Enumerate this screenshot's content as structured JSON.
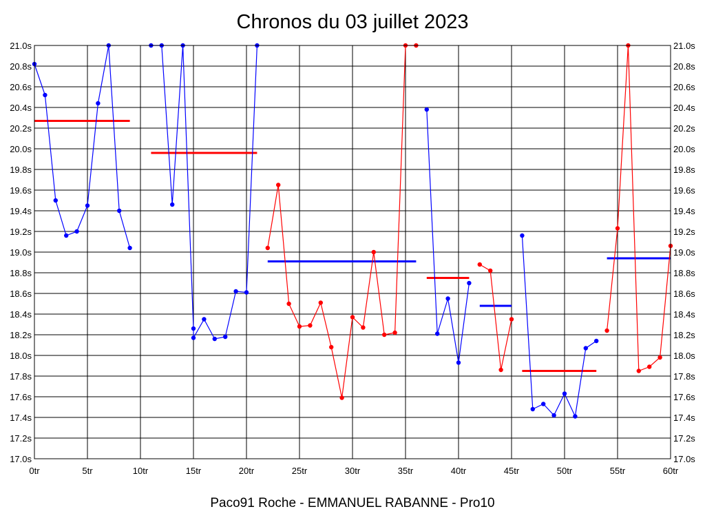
{
  "chart_data": {
    "type": "line",
    "title": "Chronos du 03 juillet 2023",
    "xlabel": "Paco91 Roche - EMMANUEL RABANNE - Pro10",
    "ylabel": "",
    "xlim": [
      0,
      60
    ],
    "ylim": [
      17.0,
      21.0
    ],
    "grid": true,
    "x_ticks": [
      "0tr",
      "5tr",
      "10tr",
      "15tr",
      "20tr",
      "25tr",
      "30tr",
      "35tr",
      "40tr",
      "45tr",
      "50tr",
      "55tr",
      "60tr"
    ],
    "y_ticks": [
      "17.0s",
      "17.2s",
      "17.4s",
      "17.6s",
      "17.8s",
      "18.0s",
      "18.2s",
      "18.4s",
      "18.6s",
      "18.8s",
      "19.0s",
      "19.2s",
      "19.4s",
      "19.6s",
      "19.8s",
      "20.0s",
      "20.2s",
      "20.4s",
      "20.6s",
      "20.8s",
      "21.0s"
    ],
    "colors": {
      "blue": "#0000ff",
      "red": "#ff0000",
      "grid": "#000000"
    },
    "series": [
      {
        "color": "#0000ff",
        "points": [
          [
            0,
            20.82
          ],
          [
            1,
            20.52
          ],
          [
            2,
            19.5
          ],
          [
            3,
            19.16
          ],
          [
            4,
            19.2
          ],
          [
            5,
            19.45
          ],
          [
            6,
            20.44
          ],
          [
            7,
            21.0
          ],
          [
            8,
            19.4
          ],
          [
            9,
            19.04
          ]
        ]
      },
      {
        "color": "#0000ff",
        "points": [
          [
            11,
            21.0
          ],
          [
            12,
            21.0
          ],
          [
            13,
            19.46
          ],
          [
            14,
            21.0
          ],
          [
            15,
            18.26
          ],
          [
            15,
            18.17
          ],
          [
            16,
            18.35
          ],
          [
            17,
            18.16
          ],
          [
            18,
            18.18
          ],
          [
            19,
            18.62
          ],
          [
            20,
            18.61
          ],
          [
            21,
            21.0
          ]
        ]
      },
      {
        "color": "#ff0000",
        "points": [
          [
            22,
            19.04
          ],
          [
            23,
            19.65
          ],
          [
            24,
            18.5
          ],
          [
            25,
            18.28
          ],
          [
            26,
            18.29
          ],
          [
            27,
            18.51
          ],
          [
            28,
            18.08
          ],
          [
            29,
            17.59
          ],
          [
            30,
            18.37
          ],
          [
            31,
            18.27
          ],
          [
            32,
            19.0
          ],
          [
            33,
            18.2
          ],
          [
            34,
            18.22
          ],
          [
            35,
            21.0
          ],
          [
            36,
            21.0
          ]
        ]
      },
      {
        "color": "#0000ff",
        "points": [
          [
            37,
            20.38
          ],
          [
            38,
            18.21
          ],
          [
            39,
            18.55
          ],
          [
            40,
            17.93
          ],
          [
            41,
            18.7
          ]
        ]
      },
      {
        "color": "#ff0000",
        "points": [
          [
            42,
            18.88
          ],
          [
            43,
            18.82
          ],
          [
            44,
            17.86
          ],
          [
            45,
            18.35
          ]
        ]
      },
      {
        "color": "#0000ff",
        "points": [
          [
            46,
            19.16
          ],
          [
            47,
            17.48
          ],
          [
            48,
            17.53
          ],
          [
            49,
            17.42
          ],
          [
            50,
            17.63
          ],
          [
            51,
            17.41
          ],
          [
            52,
            18.07
          ],
          [
            53,
            18.14
          ]
        ]
      },
      {
        "color": "#ff0000",
        "points": [
          [
            54,
            18.24
          ],
          [
            55,
            19.23
          ],
          [
            56,
            21.0
          ],
          [
            57,
            17.85
          ],
          [
            58,
            17.89
          ],
          [
            59,
            17.98
          ],
          [
            60,
            19.06
          ]
        ]
      }
    ],
    "averages": [
      {
        "color": "#ff0000",
        "x": [
          0,
          9
        ],
        "y": 20.27
      },
      {
        "color": "#ff0000",
        "x": [
          11,
          21
        ],
        "y": 19.96
      },
      {
        "color": "#0000ff",
        "x": [
          22,
          36
        ],
        "y": 18.91
      },
      {
        "color": "#ff0000",
        "x": [
          37,
          41
        ],
        "y": 18.75
      },
      {
        "color": "#0000ff",
        "x": [
          42,
          45
        ],
        "y": 18.48
      },
      {
        "color": "#ff0000",
        "x": [
          46,
          53
        ],
        "y": 17.85
      },
      {
        "color": "#0000ff",
        "x": [
          54,
          60
        ],
        "y": 18.94
      }
    ]
  }
}
